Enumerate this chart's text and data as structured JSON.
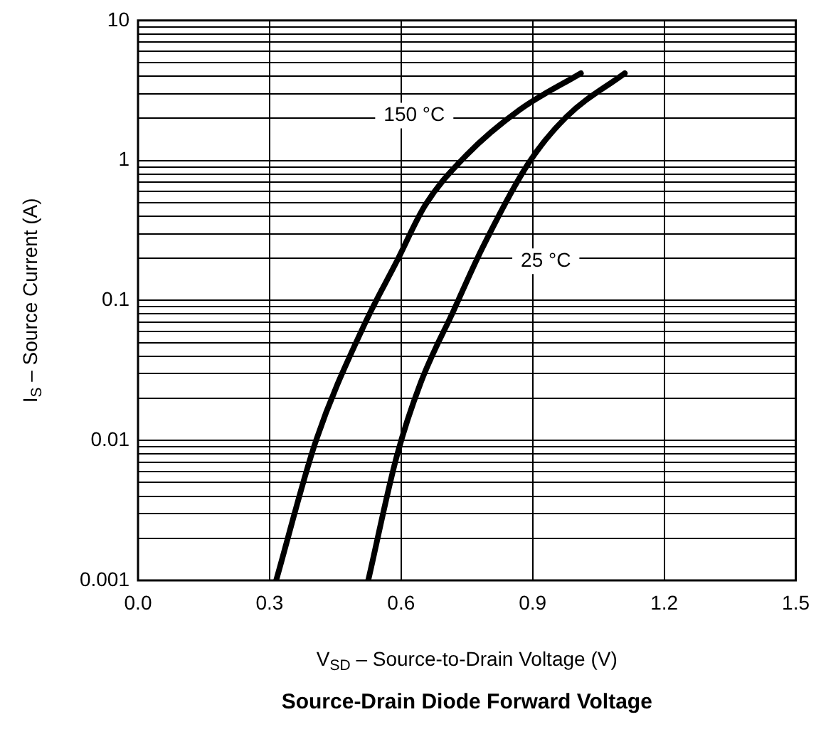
{
  "chart_data": {
    "type": "line",
    "title": "Source-Drain Diode Forward Voltage",
    "xlabel": "V$_{SD}$ – Source-to-Drain Voltage (V)",
    "ylabel": "I$_{S}$ – Source Current (A)",
    "xlim": [
      0,
      1.5
    ],
    "xticks": [
      {
        "value": 0,
        "label": "0.0"
      },
      {
        "value": 0.3,
        "label": "0.3"
      },
      {
        "value": 0.6,
        "label": "0.6"
      },
      {
        "value": 0.9,
        "label": "0.9"
      },
      {
        "value": 1.2,
        "label": "1.2"
      },
      {
        "value": 1.5,
        "label": "1.5"
      }
    ],
    "ylim": [
      0.001,
      10
    ],
    "log": "y",
    "grid": true,
    "legend": false,
    "marker": "none",
    "line_style": "solid",
    "yticks": [
      0.001,
      {
        "value": 0.002,
        "label": null
      },
      {
        "value": 0.003,
        "label": null
      },
      {
        "value": 0.004,
        "label": null
      },
      {
        "value": 0.005,
        "label": null
      },
      {
        "value": 0.006,
        "label": null
      },
      {
        "value": 0.007,
        "label": null
      },
      {
        "value": 0.008,
        "label": null
      },
      {
        "value": 0.009,
        "label": null
      },
      0.01,
      {
        "value": 0.02,
        "label": null
      },
      {
        "value": 0.03,
        "label": null
      },
      {
        "value": 0.04,
        "label": null
      },
      {
        "value": 0.05,
        "label": null
      },
      {
        "value": 0.06,
        "label": null
      },
      {
        "value": 0.07,
        "label": null
      },
      {
        "value": 0.08,
        "label": null
      },
      {
        "value": 0.09,
        "label": null
      },
      0.1,
      {
        "value": 0.2,
        "label": null
      },
      {
        "value": 0.3,
        "label": null
      },
      {
        "value": 0.4,
        "label": null
      },
      {
        "value": 0.5,
        "label": null
      },
      {
        "value": 0.6,
        "label": null
      },
      {
        "value": 0.7,
        "label": null
      },
      {
        "value": 0.8,
        "label": null
      },
      {
        "value": 0.9,
        "label": null
      },
      1,
      {
        "value": 2,
        "label": null
      },
      {
        "value": 3,
        "label": null
      },
      {
        "value": 4,
        "label": null
      },
      {
        "value": 5,
        "label": null
      },
      {
        "value": 6,
        "label": null
      },
      {
        "value": 7,
        "label": null
      },
      {
        "value": 8,
        "label": null
      },
      {
        "value": 9,
        "label": null
      },
      10
    ],
    "series": [
      {
        "name": "150 °C",
        "color": "#000000",
        "x": [
          0.315,
          0.406,
          0.516,
          0.59,
          0.655,
          0.75,
          0.87,
          1.01
        ],
        "values": [
          0.001,
          0.01,
          0.067,
          0.19,
          0.48,
          1.1,
          2.3,
          4.2
        ]
      },
      {
        "name": "25 °C",
        "color": "#000000",
        "x": [
          0.525,
          0.59,
          0.645,
          0.72,
          0.785,
          0.89,
          0.977,
          1.11
        ],
        "values": [
          0.001,
          0.0077,
          0.026,
          0.085,
          0.236,
          0.95,
          2.05,
          4.2
        ]
      }
    ]
  }
}
